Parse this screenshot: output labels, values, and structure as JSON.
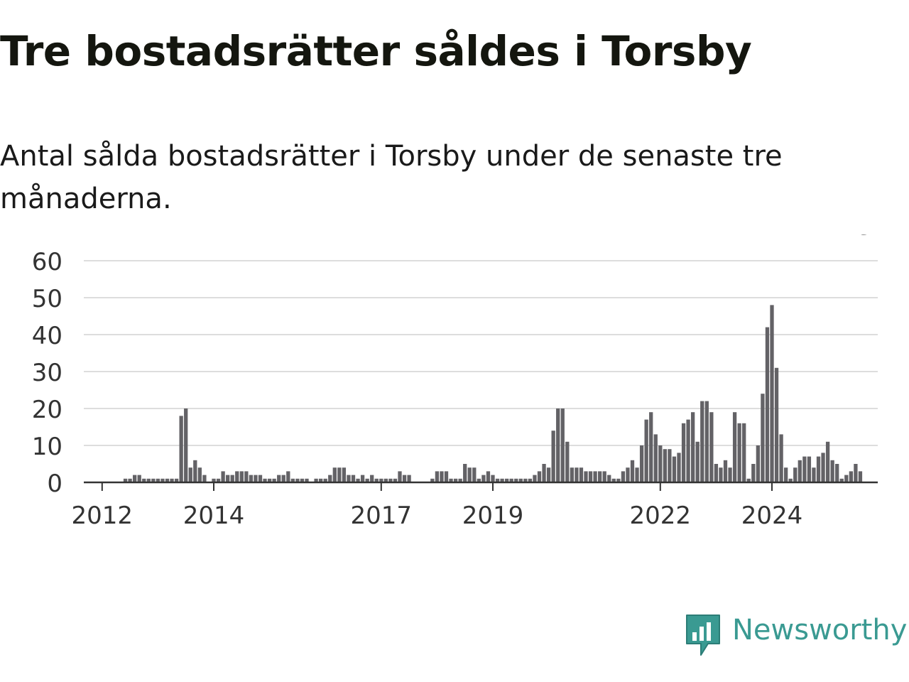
{
  "title": "Tre bostadsrätter såldes i Torsby",
  "subtitle": "Antal sålda bostadsrätter i Torsby under de senaste tre månaderna.",
  "brand": {
    "name": "Newsworthy",
    "icon": "newsworthy-logo-icon",
    "color": "#3a9a92"
  },
  "colors": {
    "bar": "#636266",
    "highlight": "#2e9e94",
    "grid": "#dddddd",
    "axis": "#333333"
  },
  "chart_data": {
    "type": "bar",
    "title": "",
    "xlabel": "",
    "ylabel": "",
    "frequency": "monthly",
    "x_start": "2011-10",
    "ylim": [
      0,
      60
    ],
    "yticks": [
      0,
      10,
      20,
      30,
      40,
      50,
      60
    ],
    "xticks": [
      {
        "label": "2012",
        "month": "2012-01"
      },
      {
        "label": "2014",
        "month": "2014-01"
      },
      {
        "label": "2017",
        "month": "2017-01"
      },
      {
        "label": "2019",
        "month": "2019-01"
      },
      {
        "label": "2022",
        "month": "2022-01"
      },
      {
        "label": "2024",
        "month": "2024-01"
      }
    ],
    "grid": true,
    "values": [
      0,
      0,
      0,
      0,
      0,
      0,
      0,
      0,
      1,
      1,
      2,
      2,
      1,
      1,
      1,
      1,
      1,
      1,
      1,
      1,
      18,
      20,
      4,
      6,
      4,
      2,
      0,
      1,
      1,
      3,
      2,
      2,
      3,
      3,
      3,
      2,
      2,
      2,
      1,
      1,
      1,
      2,
      2,
      3,
      1,
      1,
      1,
      1,
      0,
      1,
      1,
      1,
      2,
      4,
      4,
      4,
      2,
      2,
      1,
      2,
      1,
      2,
      1,
      1,
      1,
      1,
      1,
      3,
      2,
      2,
      0,
      0,
      0,
      0,
      1,
      3,
      3,
      3,
      1,
      1,
      1,
      5,
      4,
      4,
      1,
      2,
      3,
      2,
      1,
      1,
      1,
      1,
      1,
      1,
      1,
      1,
      2,
      3,
      5,
      4,
      14,
      20,
      20,
      11,
      4,
      4,
      4,
      3,
      3,
      3,
      3,
      3,
      2,
      1,
      1,
      3,
      4,
      6,
      4,
      10,
      17,
      19,
      13,
      10,
      9,
      9,
      7,
      8,
      16,
      17,
      19,
      11,
      22,
      22,
      19,
      5,
      4,
      6,
      4,
      19,
      16,
      16,
      1,
      5,
      10,
      24,
      42,
      48,
      31,
      13,
      4,
      1,
      4,
      6,
      7,
      7,
      4,
      7,
      8,
      11,
      6,
      5,
      1,
      2,
      3,
      5,
      3
    ],
    "highlight_index": 167,
    "annotation": "3"
  }
}
